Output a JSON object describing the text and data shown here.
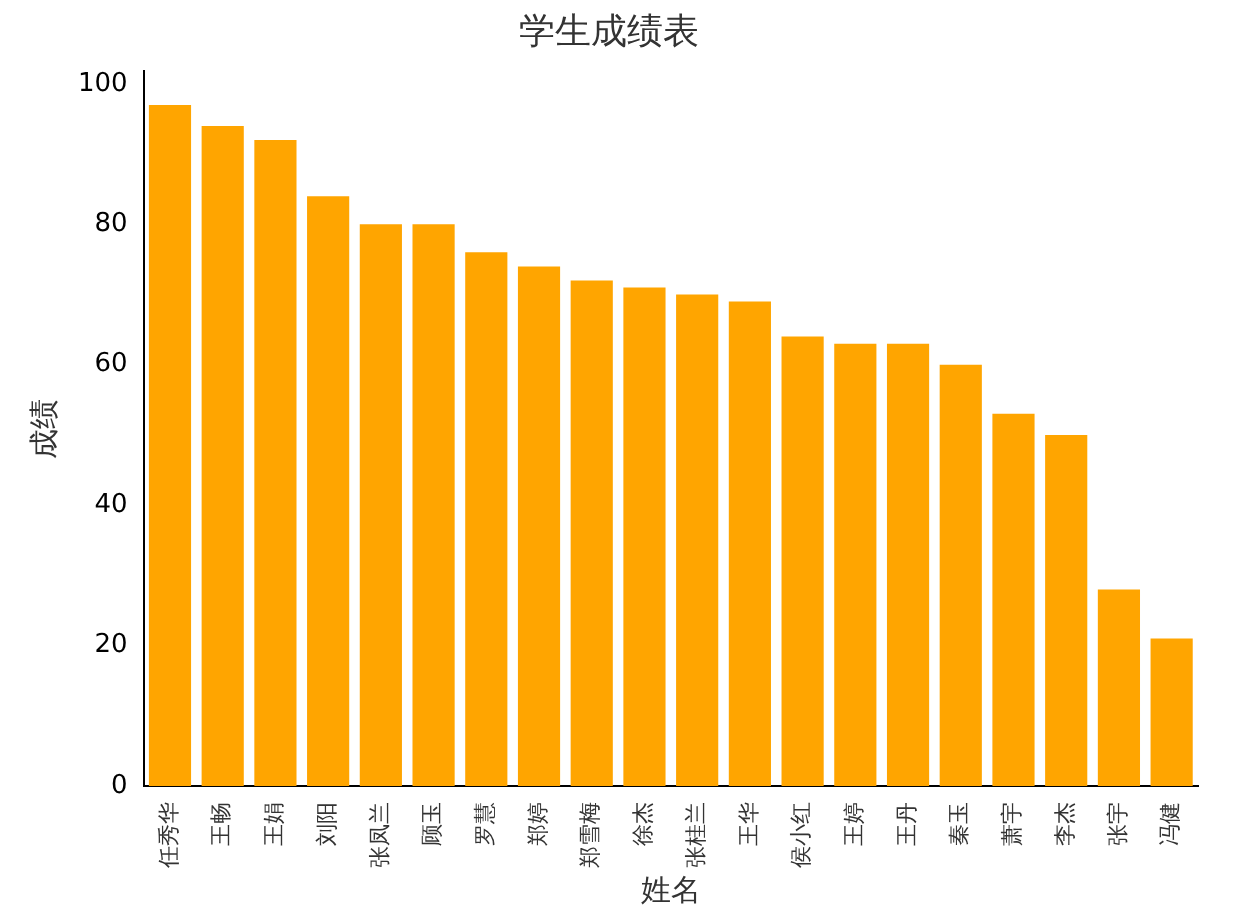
{
  "chart_data": {
    "type": "bar",
    "title": "学生成绩表",
    "xlabel": "姓名",
    "ylabel": "成绩",
    "categories": [
      "任秀华",
      "王畅",
      "王娟",
      "刘阳",
      "张凤兰",
      "顾玉",
      "罗慧",
      "郑婷",
      "郑雪梅",
      "徐杰",
      "张桂兰",
      "王华",
      "侯小红",
      "王婷",
      "王丹",
      "秦玉",
      "萧宇",
      "李杰",
      "张宇",
      "冯健"
    ],
    "values": [
      97,
      94,
      92,
      84,
      80,
      80,
      76,
      74,
      72,
      71,
      70,
      69,
      64,
      63,
      63,
      60,
      53,
      50,
      28,
      21
    ],
    "color": "#ffa500",
    "ylim": [
      0,
      101.8
    ],
    "yticks": [
      0,
      20,
      40,
      60,
      80,
      100
    ],
    "grid": false,
    "legend": false
  }
}
